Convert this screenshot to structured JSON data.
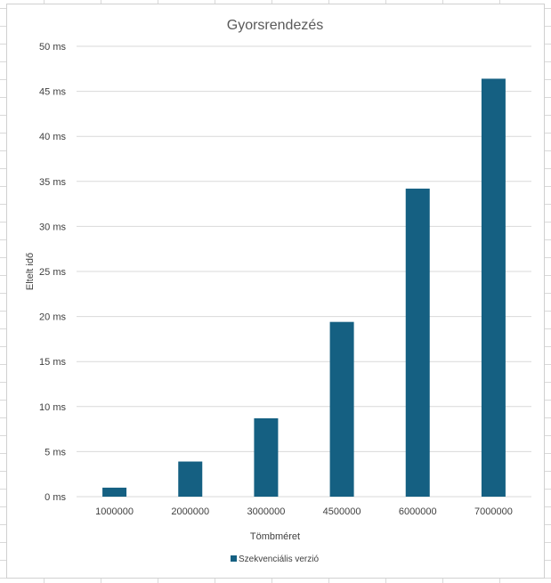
{
  "chart_data": {
    "type": "bar",
    "title": "Gyorsrendezés",
    "xlabel": "Tömbméret",
    "ylabel": "Eltelt idő",
    "categories": [
      "1000000",
      "2000000",
      "3000000",
      "4500000",
      "6000000",
      "7000000"
    ],
    "series": [
      {
        "name": "Szekvenciális verzió",
        "values": [
          1.0,
          3.9,
          8.7,
          19.4,
          34.2,
          46.4
        ],
        "color": "#156082"
      }
    ],
    "ylim": [
      0,
      50
    ],
    "yticks": [
      "0 ms",
      "5 ms",
      "10 ms",
      "15 ms",
      "20 ms",
      "25 ms",
      "30 ms",
      "35 ms",
      "40 ms",
      "45 ms",
      "50 ms"
    ],
    "grid": true,
    "legend": "bottom"
  }
}
